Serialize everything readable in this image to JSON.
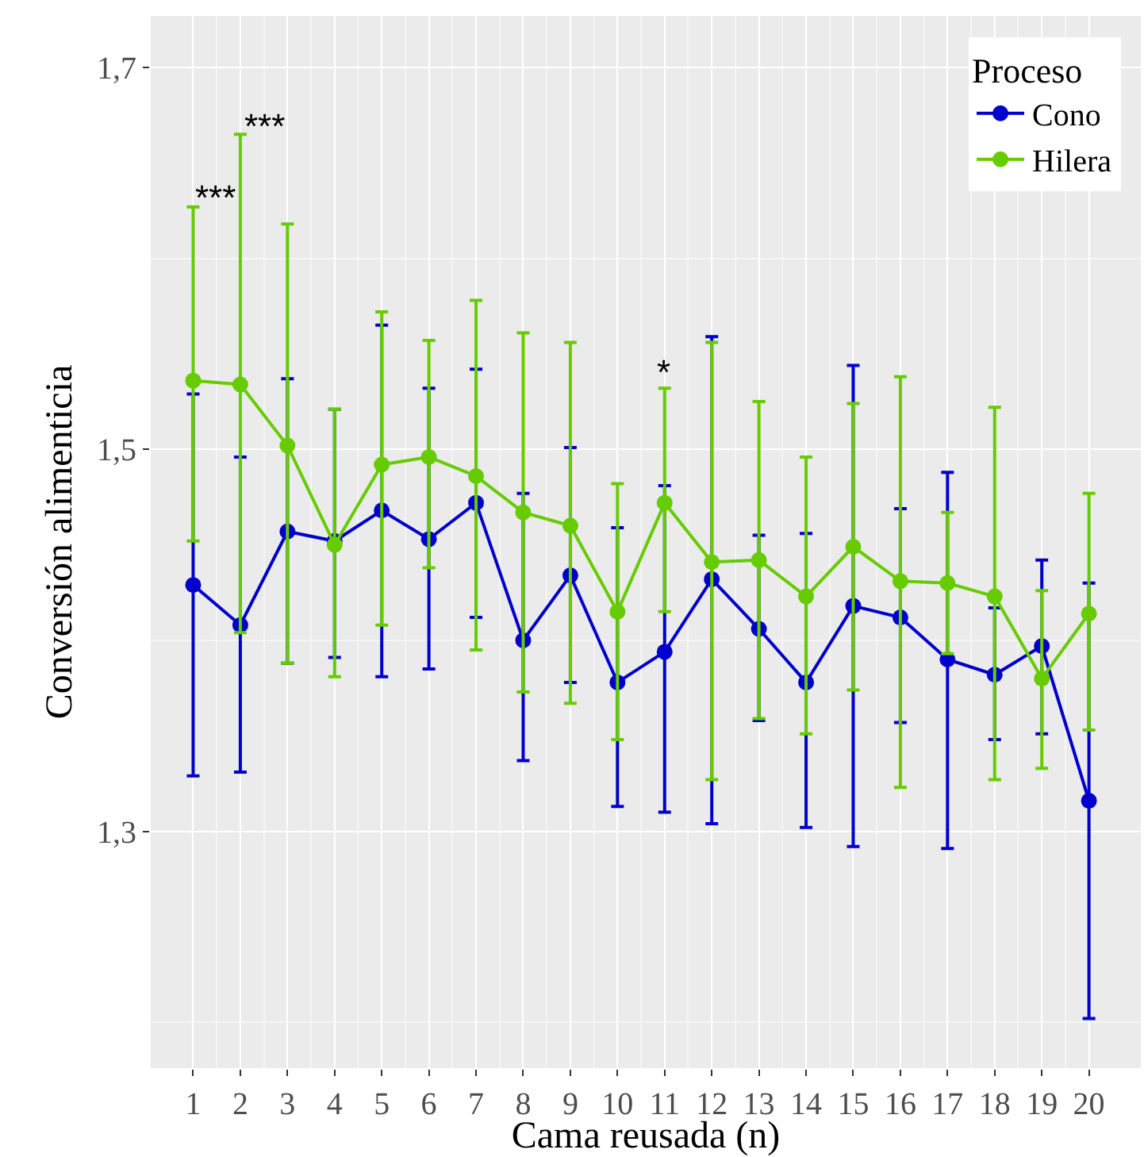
{
  "chart_data": {
    "type": "line",
    "xlabel": "Cama reusada (n)",
    "ylabel": "Conversión alimenticia",
    "legend_title": "Proceso",
    "legend": "top right",
    "grid": true,
    "marker": "circle",
    "line_style": "solid",
    "x": [
      1,
      2,
      3,
      4,
      5,
      6,
      7,
      8,
      9,
      10,
      11,
      12,
      13,
      14,
      15,
      16,
      17,
      18,
      19,
      20
    ],
    "xlim": [
      0.1,
      21.1
    ],
    "xticks": [
      1,
      2,
      3,
      4,
      5,
      6,
      7,
      8,
      9,
      10,
      11,
      12,
      13,
      14,
      15,
      16,
      17,
      18,
      19,
      20
    ],
    "ylim": [
      1.176,
      1.727
    ],
    "yticks": [
      {
        "value": 1.3,
        "label": "1,3"
      },
      {
        "value": 1.5,
        "label": "1,5"
      },
      {
        "value": 1.7,
        "label": "1,7"
      }
    ],
    "series": [
      {
        "name": "Cono",
        "color": "#0000cc",
        "values": [
          1.429,
          1.408,
          1.457,
          1.452,
          1.468,
          1.453,
          1.472,
          1.4,
          1.434,
          1.378,
          1.394,
          1.432,
          1.406,
          1.378,
          1.418,
          1.412,
          1.39,
          1.382,
          1.397,
          1.316
        ],
        "errors": [
          0.1,
          [
            1.331,
            1.496
          ],
          [
            1.388,
            1.537
          ],
          [
            1.391,
            1.521
          ],
          [
            1.381,
            1.565
          ],
          [
            1.385,
            1.532
          ],
          [
            1.412,
            1.542
          ],
          [
            1.337,
            1.477
          ],
          [
            1.378,
            1.501
          ],
          [
            1.313,
            1.459
          ],
          [
            1.31,
            1.481
          ],
          [
            1.304,
            1.559
          ],
          [
            1.358,
            1.455
          ],
          [
            1.302,
            1.456
          ],
          [
            1.292,
            1.544
          ],
          [
            1.357,
            1.469
          ],
          [
            1.291,
            1.488
          ],
          [
            1.348,
            1.417
          ],
          [
            1.351,
            1.442
          ],
          [
            1.202,
            1.43
          ]
        ]
      },
      {
        "name": "Hilera",
        "color": "#66cc00",
        "values": [
          1.536,
          1.534,
          1.502,
          1.45,
          1.492,
          1.496,
          1.486,
          1.467,
          1.46,
          1.415,
          1.472,
          1.441,
          1.442,
          1.423,
          1.449,
          1.431,
          1.43,
          1.423,
          1.38,
          1.414
        ],
        "errors": [
          [
            1.452,
            1.627
          ],
          [
            1.404,
            1.665
          ],
          [
            1.388,
            1.618
          ],
          [
            1.381,
            1.521
          ],
          [
            1.408,
            1.572
          ],
          [
            1.438,
            1.557
          ],
          [
            1.395,
            1.578
          ],
          [
            1.373,
            1.561
          ],
          [
            1.367,
            1.556
          ],
          [
            1.348,
            1.482
          ],
          [
            1.415,
            1.532
          ],
          [
            1.327,
            1.556
          ],
          [
            1.359,
            1.525
          ],
          [
            1.351,
            1.496
          ],
          [
            1.374,
            1.524
          ],
          [
            1.323,
            1.538
          ],
          [
            1.393,
            1.467
          ],
          [
            1.327,
            1.522
          ],
          [
            1.333,
            1.426
          ],
          [
            1.353,
            1.477
          ]
        ]
      }
    ],
    "annotations": [
      "***",
      "***",
      "*"
    ]
  }
}
